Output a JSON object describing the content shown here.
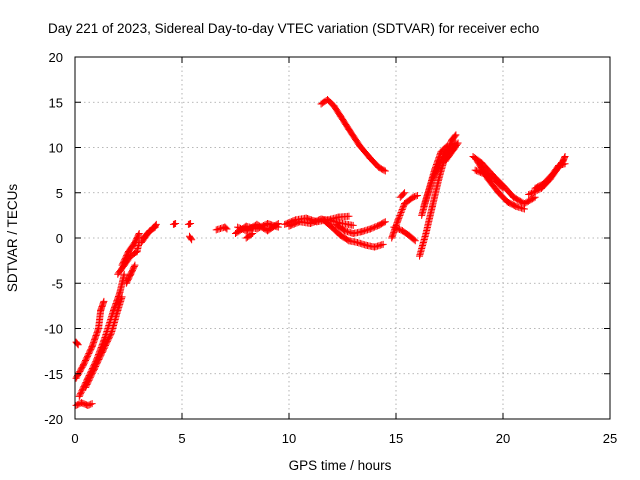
{
  "chart_data": {
    "type": "scatter",
    "title": "Day 221 of 2023, Sidereal Day-to-day VTEC variation (SDTVAR) for receiver echo",
    "xlabel": "GPS time / hours",
    "ylabel": "SDTVAR / TECUs",
    "xlim": [
      0,
      25
    ],
    "ylim": [
      -20,
      20
    ],
    "x_ticks": [
      0,
      5,
      10,
      15,
      20,
      25
    ],
    "y_ticks": [
      -20,
      -15,
      -10,
      -5,
      0,
      5,
      10,
      15,
      20
    ],
    "x_tick_labels": [
      "0",
      "5",
      "10",
      "15",
      "20",
      "25"
    ],
    "y_tick_labels": [
      "-20",
      "-15",
      "-10",
      "-5",
      "0",
      "5",
      "10",
      "15",
      "20"
    ],
    "grid": true,
    "marker": "+",
    "color": "#ff0000",
    "series": [
      {
        "name": "tracks",
        "segments": [
          [
            [
              0.05,
              -11.5
            ],
            [
              0.15,
              -11.8
            ]
          ],
          [
            [
              0.05,
              -18.5
            ],
            [
              0.3,
              -18.2
            ],
            [
              0.6,
              -18.5
            ],
            [
              0.8,
              -18.3
            ]
          ],
          [
            [
              0.05,
              -15.5
            ],
            [
              0.4,
              -14
            ],
            [
              0.8,
              -12
            ],
            [
              1.1,
              -10
            ],
            [
              1.2,
              -8
            ],
            [
              1.35,
              -7
            ]
          ],
          [
            [
              0.2,
              -17.5
            ],
            [
              0.6,
              -15.5
            ],
            [
              1.0,
              -13.5
            ],
            [
              1.4,
              -11
            ],
            [
              1.8,
              -8
            ],
            [
              2.1,
              -6
            ],
            [
              2.3,
              -4
            ]
          ],
          [
            [
              0.5,
              -16.5
            ],
            [
              0.9,
              -14.5
            ],
            [
              1.3,
              -12.5
            ],
            [
              1.7,
              -10.5
            ],
            [
              2.0,
              -8
            ],
            [
              2.2,
              -6.5
            ]
          ],
          [
            [
              2.0,
              -4
            ],
            [
              2.3,
              -3
            ],
            [
              2.6,
              -2
            ],
            [
              2.9,
              -1.5
            ],
            [
              3.0,
              -0.5
            ]
          ],
          [
            [
              2.2,
              -3
            ],
            [
              2.5,
              -1.5
            ],
            [
              2.8,
              -0.5
            ],
            [
              3.0,
              0.5
            ]
          ],
          [
            [
              2.4,
              -5
            ],
            [
              2.6,
              -4
            ],
            [
              2.8,
              -3
            ]
          ],
          [
            [
              3.1,
              -0.5
            ],
            [
              3.4,
              0.5
            ],
            [
              3.7,
              1.2
            ],
            [
              3.8,
              1.5
            ]
          ],
          [
            [
              3.2,
              0
            ],
            [
              3.5,
              0.8
            ],
            [
              3.75,
              1.2
            ]
          ],
          [
            [
              4.6,
              1.5
            ],
            [
              4.7,
              1.6
            ]
          ],
          [
            [
              5.3,
              1.5
            ],
            [
              5.4,
              1.6
            ]
          ],
          [
            [
              5.35,
              0.2
            ],
            [
              5.45,
              -0.2
            ]
          ],
          [
            [
              6.6,
              0.9
            ],
            [
              7.0,
              1.2
            ],
            [
              7.1,
              1.0
            ]
          ],
          [
            [
              7.5,
              0.5
            ],
            [
              8.0,
              1.3
            ],
            [
              8.5,
              1.0
            ],
            [
              9.0,
              1.6
            ],
            [
              9.5,
              1.2
            ]
          ],
          [
            [
              7.6,
              1.2
            ],
            [
              8.0,
              0.8
            ],
            [
              8.5,
              1.5
            ],
            [
              9.0,
              0.8
            ],
            [
              9.5,
              1.6
            ]
          ],
          [
            [
              8.0,
              0
            ],
            [
              8.3,
              0.5
            ]
          ],
          [
            [
              9.8,
              1.5
            ],
            [
              10.3,
              2.0
            ],
            [
              10.8,
              2.2
            ],
            [
              11.3,
              1.8
            ],
            [
              11.8,
              2.0
            ],
            [
              12.3,
              2.3
            ],
            [
              12.8,
              2.4
            ]
          ],
          [
            [
              10.0,
              1.3
            ],
            [
              10.5,
              1.8
            ],
            [
              11.0,
              1.6
            ],
            [
              11.5,
              2.1
            ],
            [
              12.0,
              1.9
            ],
            [
              12.5,
              1.6
            ],
            [
              13.0,
              1.4
            ]
          ],
          [
            [
              11.6,
              2.0
            ],
            [
              12.0,
              1.2
            ],
            [
              12.4,
              0.3
            ],
            [
              12.8,
              -0.3
            ],
            [
              13.2,
              -0.5
            ],
            [
              13.6,
              -0.8
            ],
            [
              14.0,
              -1.0
            ],
            [
              14.4,
              -0.7
            ]
          ],
          [
            [
              12.2,
              1.5
            ],
            [
              12.6,
              0.8
            ],
            [
              13.0,
              0.5
            ],
            [
              13.4,
              0.7
            ],
            [
              13.8,
              1.0
            ],
            [
              14.2,
              1.4
            ],
            [
              14.5,
              1.8
            ]
          ],
          [
            [
              11.5,
              14.8
            ],
            [
              11.8,
              15.3
            ],
            [
              12.1,
              14.6
            ],
            [
              12.4,
              13.5
            ],
            [
              12.8,
              12
            ],
            [
              13.3,
              10.2
            ],
            [
              13.8,
              8.8
            ],
            [
              14.2,
              7.8
            ],
            [
              14.5,
              7.4
            ]
          ],
          [
            [
              14.8,
              0
            ],
            [
              15.1,
              2
            ],
            [
              15.4,
              3.8
            ],
            [
              15.8,
              4.5
            ],
            [
              16.0,
              4.7
            ]
          ],
          [
            [
              14.9,
              1.2
            ],
            [
              15.3,
              0.8
            ],
            [
              15.6,
              0.3
            ],
            [
              15.9,
              -0.3
            ]
          ],
          [
            [
              15.2,
              4.5
            ],
            [
              15.4,
              5.0
            ]
          ],
          [
            [
              16.1,
              -2
            ],
            [
              16.4,
              0.5
            ],
            [
              16.7,
              3.5
            ],
            [
              17.0,
              6.5
            ],
            [
              17.3,
              9
            ],
            [
              17.6,
              10.8
            ],
            [
              17.8,
              11.4
            ]
          ],
          [
            [
              16.2,
              2.5
            ],
            [
              16.5,
              5.0
            ],
            [
              16.8,
              7.5
            ],
            [
              17.1,
              9.5
            ],
            [
              17.4,
              10.2
            ]
          ],
          [
            [
              16.3,
              3.5
            ],
            [
              16.7,
              6.5
            ],
            [
              17.1,
              8.5
            ],
            [
              17.5,
              9.8
            ],
            [
              17.8,
              10.5
            ]
          ],
          [
            [
              17.3,
              8.5
            ],
            [
              17.7,
              9.8
            ],
            [
              17.9,
              10.5
            ]
          ],
          [
            [
              18.6,
              9.0
            ],
            [
              19.0,
              8.3
            ],
            [
              19.5,
              7.0
            ],
            [
              20.0,
              5.8
            ],
            [
              20.5,
              4.5
            ],
            [
              21.0,
              3.8
            ],
            [
              21.5,
              4.5
            ]
          ],
          [
            [
              18.8,
              8.5
            ],
            [
              19.3,
              6.5
            ],
            [
              19.8,
              5.0
            ],
            [
              20.2,
              4.0
            ],
            [
              20.6,
              3.5
            ],
            [
              21.0,
              3.2
            ]
          ],
          [
            [
              18.7,
              7.5
            ],
            [
              19.2,
              7.0
            ],
            [
              19.6,
              6.5
            ],
            [
              20.0,
              5.5
            ]
          ],
          [
            [
              21.2,
              4.8
            ],
            [
              21.8,
              5.5
            ],
            [
              22.2,
              6.5
            ],
            [
              22.5,
              7.5
            ],
            [
              22.8,
              8.5
            ],
            [
              22.9,
              9.0
            ]
          ],
          [
            [
              21.5,
              5.5
            ],
            [
              21.9,
              6.0
            ],
            [
              22.3,
              7.0
            ],
            [
              22.6,
              8.0
            ],
            [
              22.9,
              8.2
            ]
          ]
        ]
      }
    ]
  }
}
